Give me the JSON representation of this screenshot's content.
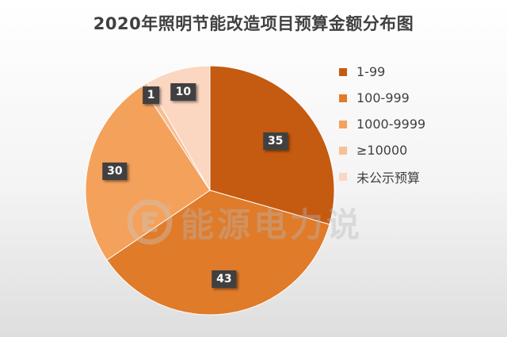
{
  "chart_data": {
    "type": "pie",
    "title": "2020年照明节能改造项目预算金额分布图",
    "categories": [
      "1-99",
      "100-999",
      "1000-9999",
      "≥10000",
      "未公示预算"
    ],
    "values": [
      35,
      43,
      30,
      1,
      10
    ],
    "colors": [
      "#c55a11",
      "#e07b2a",
      "#f4a15b",
      "#f8bf93",
      "#fbd6c0"
    ],
    "legend_position": "right"
  },
  "watermark": {
    "text": "能源电力说",
    "icon": "energy-power-logo-icon"
  }
}
